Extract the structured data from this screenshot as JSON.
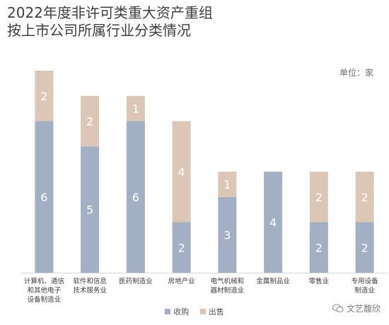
{
  "title_lines": [
    "2022年度非许可类重大资产重组",
    "按上市公司所属行业分类情况"
  ],
  "unit": "单位：家",
  "watermark": "文艺馥欣",
  "colors": {
    "acquisition": "#a3afc2",
    "sale": "#dcc7b7",
    "axis": "#d9d9d9",
    "value_text": "#ffffff",
    "category_text": "#404040"
  },
  "chart_data": {
    "type": "bar",
    "stacked": true,
    "categories": [
      [
        "计算机、通信",
        "和其他电子",
        "设备制造业"
      ],
      [
        "软件和信息",
        "技术服务业"
      ],
      [
        "医药制造业"
      ],
      [
        "房地产业"
      ],
      [
        "电气机械和",
        "器材制造业"
      ],
      [
        "金属制品业"
      ],
      [
        "零售业"
      ],
      [
        "专用设备",
        "制造业"
      ]
    ],
    "series": [
      {
        "name": "收购",
        "values": [
          6,
          5,
          6,
          2,
          3,
          4,
          2,
          2
        ]
      },
      {
        "name": "出售",
        "values": [
          2,
          2,
          1,
          4,
          1,
          0,
          2,
          2
        ]
      }
    ],
    "ylim": [
      0,
      8
    ],
    "grid": false,
    "legend": "bottom",
    "unit": "单位：家"
  }
}
